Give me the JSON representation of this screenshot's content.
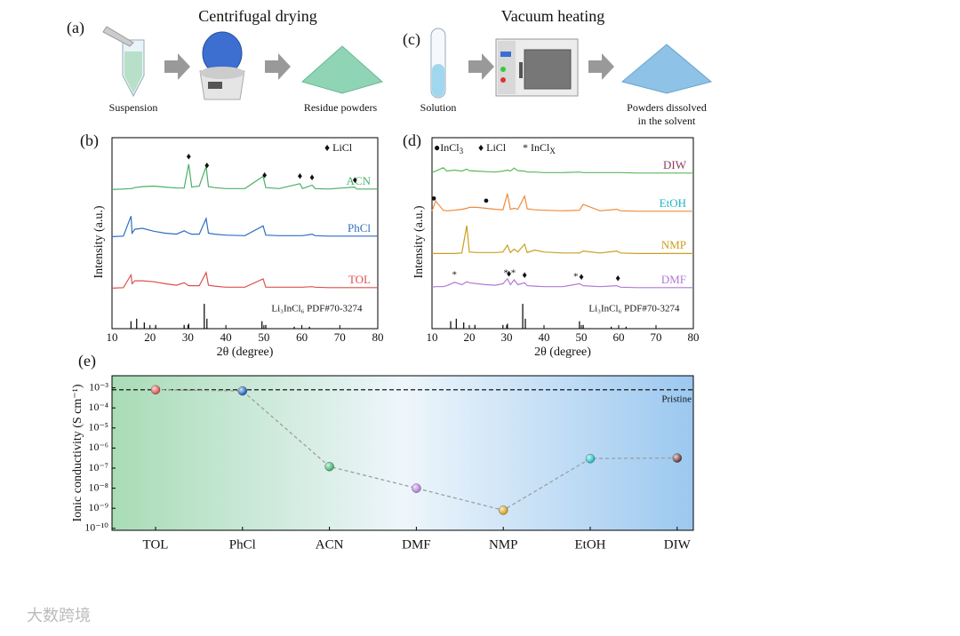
{
  "panel_a": {
    "label": "(a)",
    "title": "Centrifugal drying",
    "steps": [
      "Suspension",
      "Residue powders"
    ]
  },
  "panel_c": {
    "label": "(c)",
    "title": "Vacuum heating",
    "steps": [
      "Solution",
      "Powders dissolved",
      "in the solvent"
    ]
  },
  "watermark": "大数跨境",
  "chart_data": [
    {
      "type": "line",
      "panel": "(b)",
      "xlabel": "2θ (degree)",
      "ylabel": "Intensity (a.u.)",
      "xlim": [
        10,
        80
      ],
      "xticks": [
        10,
        20,
        30,
        40,
        50,
        60,
        70,
        80
      ],
      "x": [
        10,
        13,
        15,
        15.3,
        16,
        18,
        21,
        24,
        27,
        29,
        30.2,
        31,
        33,
        34.8,
        35.4,
        37,
        40,
        45,
        49.8,
        50.5,
        54,
        59.5,
        60.2,
        62.7,
        63.5,
        67,
        73.8,
        74.5,
        80
      ],
      "series": [
        {
          "name": "ACN",
          "color": "#4caf6a",
          "label_color": "#4caf6a",
          "values": [
            3,
            4,
            5,
            5,
            7,
            9,
            10,
            8,
            6,
            6,
            55,
            8,
            10,
            50,
            9,
            7,
            5,
            5,
            30,
            7,
            5,
            15,
            5,
            12,
            5,
            4,
            8,
            4,
            4
          ]
        },
        {
          "name": "PhCl",
          "color": "#2f6fbf",
          "label_color": "#2f6fbf",
          "values": [
            3,
            4,
            45,
            10,
            18,
            20,
            14,
            10,
            8,
            15,
            10,
            8,
            8,
            40,
            10,
            8,
            6,
            5,
            25,
            6,
            5,
            5,
            5,
            8,
            5,
            4,
            4,
            4,
            4
          ]
        },
        {
          "name": "TOL",
          "color": "#d9534f",
          "label_color": "#d9534f",
          "values": [
            3,
            4,
            30,
            12,
            18,
            18,
            16,
            12,
            9,
            14,
            8,
            8,
            8,
            35,
            9,
            7,
            5,
            5,
            22,
            5,
            5,
            5,
            5,
            6,
            5,
            4,
            4,
            4,
            4
          ]
        }
      ],
      "reference": {
        "label": "Li₃InCl₆ PDF#70-3274",
        "x": [
          15,
          16.5,
          18.5,
          21.5,
          29,
          30.2,
          34.3,
          35,
          49.5,
          50.5,
          58,
          62
        ],
        "values": [
          30,
          40,
          25,
          15,
          15,
          20,
          100,
          40,
          30,
          15,
          8,
          8
        ]
      },
      "legend": [
        {
          "symbol": "♦",
          "text": "LiCl"
        }
      ],
      "markers": [
        {
          "symbol": "♦",
          "series": "ACN",
          "x": [
            30.2,
            35,
            50.2,
            59.5,
            62.7,
            74
          ]
        }
      ]
    },
    {
      "type": "line",
      "panel": "(d)",
      "xlabel": "2θ (degree)",
      "ylabel": "Intensity (a.u.)",
      "xlim": [
        10,
        80
      ],
      "xticks": [
        10,
        20,
        30,
        40,
        50,
        60,
        70,
        80
      ],
      "x": [
        10,
        11,
        13,
        14,
        16,
        18,
        19.3,
        20,
        22,
        24.5,
        27,
        29,
        30.2,
        31,
        32,
        33,
        34.8,
        35.5,
        37.5,
        40,
        45,
        49.5,
        50.5,
        55,
        59.5,
        60.5,
        65,
        70,
        80
      ],
      "series": [
        {
          "name": "DIW",
          "color": "#5cb85c",
          "label_color": "#8b3a5a",
          "values": [
            5,
            8,
            15,
            8,
            10,
            8,
            12,
            9,
            8,
            7,
            6,
            8,
            10,
            8,
            14,
            9,
            8,
            6,
            6,
            5,
            5,
            6,
            5,
            5,
            5,
            5,
            4,
            4,
            4
          ]
        },
        {
          "name": "EtOH",
          "color": "#f08a3c",
          "label_color": "#1fb5c0",
          "values": [
            5,
            25,
            6,
            5,
            6,
            8,
            10,
            12,
            12,
            10,
            8,
            7,
            40,
            8,
            10,
            8,
            35,
            9,
            7,
            6,
            5,
            6,
            18,
            5,
            8,
            5,
            4,
            4,
            4
          ]
        },
        {
          "name": "NMP",
          "color": "#c9a020",
          "label_color": "#c9a020",
          "values": [
            3,
            3,
            3,
            3,
            3,
            4,
            60,
            6,
            5,
            5,
            5,
            6,
            20,
            5,
            12,
            6,
            22,
            5,
            10,
            6,
            4,
            4,
            8,
            4,
            8,
            4,
            3,
            3,
            3
          ]
        },
        {
          "name": "DMF",
          "color": "#b07ad6",
          "label_color": "#b07ad6",
          "values": [
            5,
            6,
            6,
            8,
            15,
            10,
            16,
            14,
            12,
            10,
            9,
            12,
            22,
            10,
            20,
            10,
            14,
            8,
            7,
            6,
            6,
            12,
            8,
            6,
            8,
            5,
            4,
            4,
            4
          ]
        }
      ],
      "reference": {
        "label": "Li₃InCl₆ PDF#70-3274",
        "x": [
          15,
          16.5,
          18.5,
          21.5,
          29,
          30.2,
          34.3,
          35,
          49.5,
          50.5,
          58,
          62
        ],
        "values": [
          30,
          40,
          25,
          15,
          15,
          20,
          100,
          40,
          30,
          15,
          8,
          8
        ]
      },
      "legend": [
        {
          "symbol": "●",
          "text": "InCl",
          "sub": "3"
        },
        {
          "symbol": "♦",
          "text": "LiCl"
        },
        {
          "symbol": "*",
          "text": "InCl",
          "sub": "X"
        }
      ],
      "markers": [
        {
          "symbol": "●",
          "series": "EtOH",
          "x": [
            10.5,
            24.5
          ]
        },
        {
          "symbol": "*",
          "series": "DMF",
          "x": [
            16,
            29.8,
            31.8,
            48.5
          ]
        },
        {
          "symbol": "♦",
          "series": "DMF",
          "x": [
            30.6,
            34.8,
            50,
            59.8
          ]
        }
      ]
    },
    {
      "type": "scatter",
      "panel": "(e)",
      "ylabel": "Ionic conductivity (S cm⁻¹)",
      "log_y": true,
      "categories": [
        "TOL",
        "PhCl",
        "ACN",
        "DMF",
        "NMP",
        "EtOH",
        "DIW"
      ],
      "values": [
        0.0008,
        0.0007,
        1.2e-07,
        1e-08,
        8e-10,
        3e-07,
        3.2e-07
      ],
      "colors": [
        "#d9534f",
        "#1f5fbf",
        "#3cb371",
        "#b57bd9",
        "#d4a017",
        "#20c0c8",
        "#6b3a3a"
      ],
      "ylim": [
        8e-11,
        0.004
      ],
      "yticks": [
        {
          "value": 1e-10,
          "label": "10⁻¹⁰"
        },
        {
          "value": 1e-09,
          "label": "10⁻⁹"
        },
        {
          "value": 1e-08,
          "label": "10⁻⁸"
        },
        {
          "value": 1e-07,
          "label": "10⁻⁷"
        },
        {
          "value": 1e-06,
          "label": "10⁻⁶"
        },
        {
          "value": 1e-05,
          "label": "10⁻⁵"
        },
        {
          "value": 0.0001,
          "label": "10⁻⁴"
        },
        {
          "value": 0.001,
          "label": "10⁻³"
        }
      ],
      "reference_line": {
        "value": 0.0008,
        "label": "Pristine"
      }
    }
  ]
}
